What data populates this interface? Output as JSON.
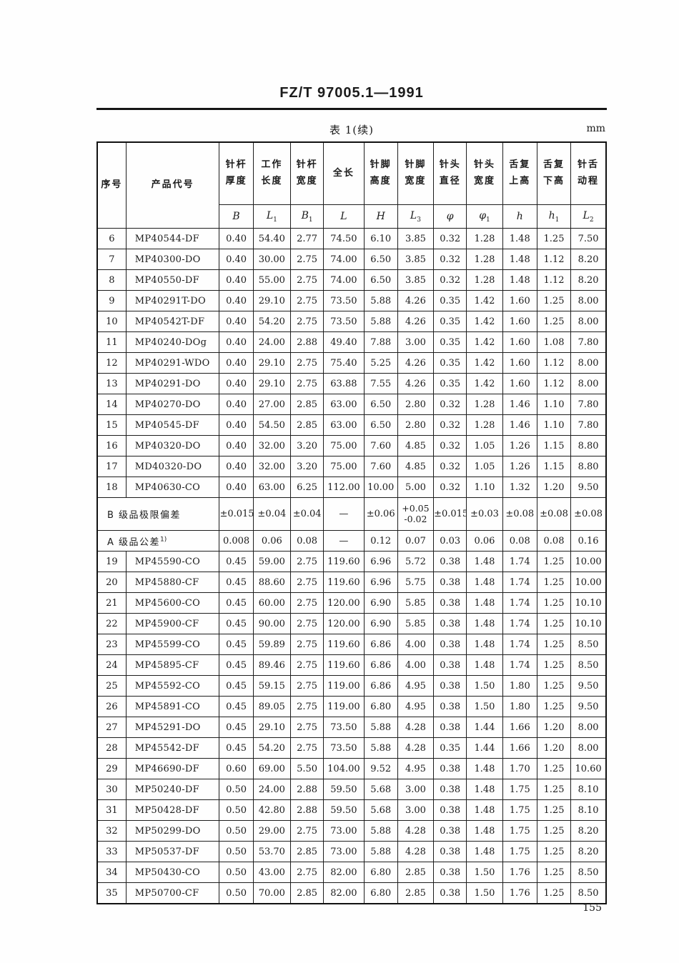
{
  "doc": {
    "standard_number": "FZ/T 97005.1—1991",
    "table_caption": "表 1(续)",
    "unit_label": "mm",
    "page_number": "155"
  },
  "table": {
    "row_header_labels": {
      "no": "序号",
      "code": "产品代号"
    },
    "columns": [
      {
        "line1": "针杆",
        "line2": "厚度",
        "sym": "B",
        "sub": ""
      },
      {
        "line1": "工作",
        "line2": "长度",
        "sym": "L",
        "sub": "1"
      },
      {
        "line1": "针杆",
        "line2": "宽度",
        "sym": "B",
        "sub": "1"
      },
      {
        "line1": "全长",
        "line2": "",
        "sym": "L",
        "sub": ""
      },
      {
        "line1": "针脚",
        "line2": "高度",
        "sym": "H",
        "sub": ""
      },
      {
        "line1": "针脚",
        "line2": "宽度",
        "sym": "L",
        "sub": "3"
      },
      {
        "line1": "针头",
        "line2": "直径",
        "sym": "φ",
        "sub": ""
      },
      {
        "line1": "针头",
        "line2": "宽度",
        "sym": "φ",
        "sub": "1"
      },
      {
        "line1": "舌复",
        "line2": "上高",
        "sym": "h",
        "sub": ""
      },
      {
        "line1": "舌复",
        "line2": "下高",
        "sym": "h",
        "sub": "1"
      },
      {
        "line1": "针舌",
        "line2": "动程",
        "sym": "L",
        "sub": "2"
      }
    ],
    "rows": [
      {
        "no": "6",
        "code": "MP40544-DF",
        "v": [
          "0.40",
          "54.40",
          "2.77",
          "74.50",
          "6.10",
          "3.85",
          "0.32",
          "1.28",
          "1.48",
          "1.25",
          "7.50"
        ]
      },
      {
        "no": "7",
        "code": "MP40300-DO",
        "v": [
          "0.40",
          "30.00",
          "2.75",
          "74.00",
          "6.50",
          "3.85",
          "0.32",
          "1.28",
          "1.48",
          "1.12",
          "8.20"
        ]
      },
      {
        "no": "8",
        "code": "MP40550-DF",
        "v": [
          "0.40",
          "55.00",
          "2.75",
          "74.00",
          "6.50",
          "3.85",
          "0.32",
          "1.28",
          "1.48",
          "1.12",
          "8.20"
        ]
      },
      {
        "no": "9",
        "code": "MP40291T-DO",
        "v": [
          "0.40",
          "29.10",
          "2.75",
          "73.50",
          "5.88",
          "4.26",
          "0.35",
          "1.42",
          "1.60",
          "1.25",
          "8.00"
        ]
      },
      {
        "no": "10",
        "code": "MP40542T-DF",
        "v": [
          "0.40",
          "54.20",
          "2.75",
          "73.50",
          "5.88",
          "4.26",
          "0.35",
          "1.42",
          "1.60",
          "1.25",
          "8.00"
        ]
      },
      {
        "no": "11",
        "code": "MP40240-DOg",
        "v": [
          "0.40",
          "24.00",
          "2.88",
          "49.40",
          "7.88",
          "3.00",
          "0.35",
          "1.42",
          "1.60",
          "1.08",
          "7.80"
        ]
      },
      {
        "no": "12",
        "code": "MP40291-WDO",
        "v": [
          "0.40",
          "29.10",
          "2.75",
          "75.40",
          "5.25",
          "4.26",
          "0.35",
          "1.42",
          "1.60",
          "1.12",
          "8.00"
        ]
      },
      {
        "no": "13",
        "code": "MP40291-DO",
        "v": [
          "0.40",
          "29.10",
          "2.75",
          "63.88",
          "7.55",
          "4.26",
          "0.35",
          "1.42",
          "1.60",
          "1.12",
          "8.00"
        ]
      },
      {
        "no": "14",
        "code": "MP40270-DO",
        "v": [
          "0.40",
          "27.00",
          "2.85",
          "63.00",
          "6.50",
          "2.80",
          "0.32",
          "1.28",
          "1.46",
          "1.10",
          "7.80"
        ]
      },
      {
        "no": "15",
        "code": "MP40545-DF",
        "v": [
          "0.40",
          "54.50",
          "2.85",
          "63.00",
          "6.50",
          "2.80",
          "0.32",
          "1.28",
          "1.46",
          "1.10",
          "7.80"
        ]
      },
      {
        "no": "16",
        "code": "MP40320-DO",
        "v": [
          "0.40",
          "32.00",
          "3.20",
          "75.00",
          "7.60",
          "4.85",
          "0.32",
          "1.05",
          "1.26",
          "1.15",
          "8.80"
        ]
      },
      {
        "no": "17",
        "code": "MD40320-DO",
        "v": [
          "0.40",
          "32.00",
          "3.20",
          "75.00",
          "7.60",
          "4.85",
          "0.32",
          "1.05",
          "1.26",
          "1.15",
          "8.80"
        ]
      },
      {
        "no": "18",
        "code": "MP40630-CO",
        "v": [
          "0.40",
          "63.00",
          "6.25",
          "112.00",
          "10.00",
          "5.00",
          "0.32",
          "1.10",
          "1.32",
          "1.20",
          "9.50"
        ]
      },
      {
        "label": "B 级品极限偏差",
        "sup": "",
        "v": [
          "±0.015",
          "±0.04",
          "±0.04",
          "—",
          "±0.06",
          [
            "+0.05",
            "-0.02"
          ],
          "±0.015",
          "±0.03",
          "±0.08",
          "±0.08",
          "±0.08"
        ]
      },
      {
        "label": "A 级品公差",
        "sup": "1)",
        "v": [
          "0.008",
          "0.06",
          "0.08",
          "—",
          "0.12",
          "0.07",
          "0.03",
          "0.06",
          "0.08",
          "0.08",
          "0.16"
        ]
      },
      {
        "no": "19",
        "code": "MP45590-CO",
        "v": [
          "0.45",
          "59.00",
          "2.75",
          "119.60",
          "6.96",
          "5.72",
          "0.38",
          "1.48",
          "1.74",
          "1.25",
          "10.00"
        ]
      },
      {
        "no": "20",
        "code": "MP45880-CF",
        "v": [
          "0.45",
          "88.60",
          "2.75",
          "119.60",
          "6.96",
          "5.75",
          "0.38",
          "1.48",
          "1.74",
          "1.25",
          "10.00"
        ]
      },
      {
        "no": "21",
        "code": "MP45600-CO",
        "v": [
          "0.45",
          "60.00",
          "2.75",
          "120.00",
          "6.90",
          "5.85",
          "0.38",
          "1.48",
          "1.74",
          "1.25",
          "10.10"
        ]
      },
      {
        "no": "22",
        "code": "MP45900-CF",
        "v": [
          "0.45",
          "90.00",
          "2.75",
          "120.00",
          "6.90",
          "5.85",
          "0.38",
          "1.48",
          "1.74",
          "1.25",
          "10.10"
        ]
      },
      {
        "no": "23",
        "code": "MP45599-CO",
        "v": [
          "0.45",
          "59.89",
          "2.75",
          "119.60",
          "6.86",
          "4.00",
          "0.38",
          "1.48",
          "1.74",
          "1.25",
          "8.50"
        ]
      },
      {
        "no": "24",
        "code": "MP45895-CF",
        "v": [
          "0.45",
          "89.46",
          "2.75",
          "119.60",
          "6.86",
          "4.00",
          "0.38",
          "1.48",
          "1.74",
          "1.25",
          "8.50"
        ]
      },
      {
        "no": "25",
        "code": "MP45592-CO",
        "v": [
          "0.45",
          "59.15",
          "2.75",
          "119.00",
          "6.86",
          "4.95",
          "0.38",
          "1.50",
          "1.80",
          "1.25",
          "9.50"
        ]
      },
      {
        "no": "26",
        "code": "MP45891-CO",
        "v": [
          "0.45",
          "89.05",
          "2.75",
          "119.00",
          "6.80",
          "4.95",
          "0.38",
          "1.50",
          "1.80",
          "1.25",
          "9.50"
        ]
      },
      {
        "no": "27",
        "code": "MP45291-DO",
        "v": [
          "0.45",
          "29.10",
          "2.75",
          "73.50",
          "5.88",
          "4.28",
          "0.38",
          "1.44",
          "1.66",
          "1.20",
          "8.00"
        ]
      },
      {
        "no": "28",
        "code": "MP45542-DF",
        "v": [
          "0.45",
          "54.20",
          "2.75",
          "73.50",
          "5.88",
          "4.28",
          "0.35",
          "1.44",
          "1.66",
          "1.20",
          "8.00"
        ]
      },
      {
        "no": "29",
        "code": "MP46690-DF",
        "v": [
          "0.60",
          "69.00",
          "5.50",
          "104.00",
          "9.52",
          "4.95",
          "0.38",
          "1.48",
          "1.70",
          "1.25",
          "10.60"
        ]
      },
      {
        "no": "30",
        "code": "MP50240-DF",
        "v": [
          "0.50",
          "24.00",
          "2.88",
          "59.50",
          "5.68",
          "3.00",
          "0.38",
          "1.48",
          "1.75",
          "1.25",
          "8.10"
        ]
      },
      {
        "no": "31",
        "code": "MP50428-DF",
        "v": [
          "0.50",
          "42.80",
          "2.88",
          "59.50",
          "5.68",
          "3.00",
          "0.38",
          "1.48",
          "1.75",
          "1.25",
          "8.10"
        ]
      },
      {
        "no": "32",
        "code": "MP50299-DO",
        "v": [
          "0.50",
          "29.00",
          "2.75",
          "73.00",
          "5.88",
          "4.28",
          "0.38",
          "1.48",
          "1.75",
          "1.25",
          "8.20"
        ]
      },
      {
        "no": "33",
        "code": "MP50537-DF",
        "v": [
          "0.50",
          "53.70",
          "2.85",
          "73.00",
          "5.88",
          "4.28",
          "0.38",
          "1.48",
          "1.75",
          "1.25",
          "8.20"
        ]
      },
      {
        "no": "34",
        "code": "MP50430-CO",
        "v": [
          "0.50",
          "43.00",
          "2.75",
          "82.00",
          "6.80",
          "2.85",
          "0.38",
          "1.50",
          "1.76",
          "1.25",
          "8.50"
        ]
      },
      {
        "no": "35",
        "code": "MP50700-CF",
        "v": [
          "0.50",
          "70.00",
          "2.85",
          "82.00",
          "6.80",
          "2.85",
          "0.38",
          "1.50",
          "1.76",
          "1.25",
          "8.50"
        ]
      }
    ]
  }
}
